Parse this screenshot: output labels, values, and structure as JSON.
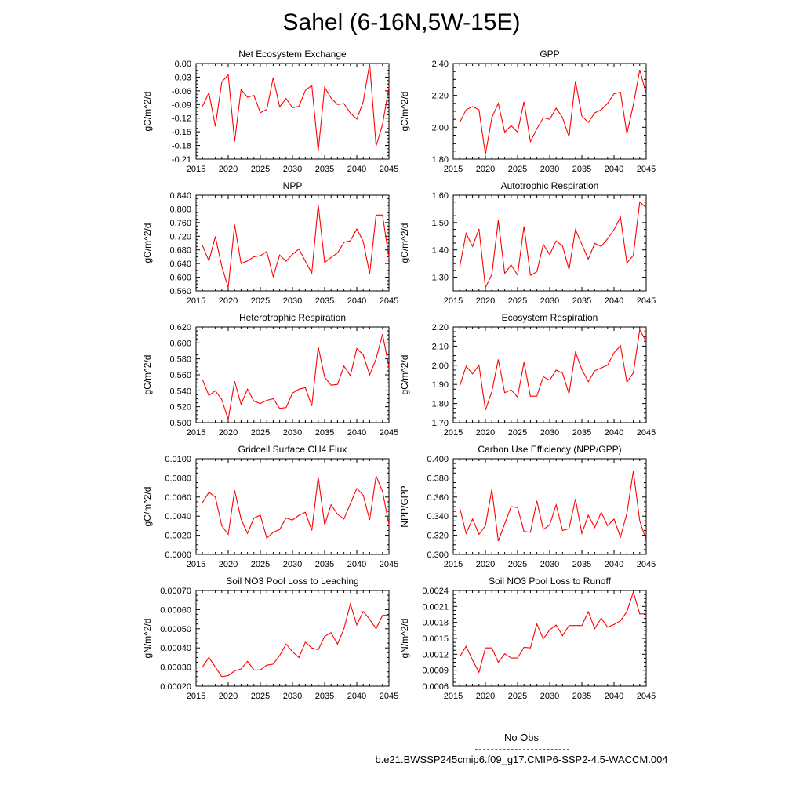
{
  "title": "Sahel (6-16N,5W-15E)",
  "legend": {
    "obs_label": "No Obs",
    "model_label": "b.e21.BWSSP245cmip6.f09_g17.CMIP6-SSP2-4.5-WACCM.004",
    "obs_color": "#5555cc",
    "model_color": "#ff0000"
  },
  "chart_data": [
    {
      "type": "line",
      "title": "Net Ecosystem Exchange",
      "xlabel": "",
      "ylabel": "gC/m^2/d",
      "xlim": [
        2015,
        2045
      ],
      "ylim": [
        -0.21,
        0.0
      ],
      "xticks": [
        "2015",
        "2020",
        "2025",
        "2030",
        "2035",
        "2040",
        "2045"
      ],
      "yticks": [
        "0.00",
        "-0.03",
        "-0.06",
        "-0.09",
        "-0.12",
        "-0.15",
        "-0.18",
        "-0.21"
      ],
      "grid": false,
      "x": [
        2016,
        2017,
        2018,
        2019,
        2020,
        2021,
        2022,
        2023,
        2024,
        2025,
        2026,
        2027,
        2028,
        2029,
        2030,
        2031,
        2032,
        2033,
        2034,
        2035,
        2036,
        2037,
        2038,
        2039,
        2040,
        2041,
        2042,
        2043,
        2044,
        2045
      ],
      "series": [
        {
          "values": [
            -0.094,
            -0.064,
            -0.138,
            -0.041,
            -0.025,
            -0.171,
            -0.057,
            -0.074,
            -0.07,
            -0.108,
            -0.101,
            -0.031,
            -0.095,
            -0.077,
            -0.097,
            -0.094,
            -0.059,
            -0.048,
            -0.192,
            -0.052,
            -0.076,
            -0.09,
            -0.088,
            -0.109,
            -0.122,
            -0.084,
            0.0,
            -0.181,
            -0.134,
            -0.052
          ]
        }
      ]
    },
    {
      "type": "line",
      "title": "GPP",
      "xlabel": "",
      "ylabel": "gC/m^2/d",
      "xlim": [
        2015,
        2045
      ],
      "ylim": [
        1.8,
        2.4
      ],
      "xticks": [
        "2015",
        "2020",
        "2025",
        "2030",
        "2035",
        "2040",
        "2045"
      ],
      "yticks": [
        "2.40",
        "2.20",
        "2.00",
        "1.80"
      ],
      "grid": false,
      "x": [
        2016,
        2017,
        2018,
        2019,
        2020,
        2021,
        2022,
        2023,
        2024,
        2025,
        2026,
        2027,
        2028,
        2029,
        2030,
        2031,
        2032,
        2033,
        2034,
        2035,
        2036,
        2037,
        2038,
        2039,
        2040,
        2041,
        2042,
        2043,
        2044,
        2045
      ],
      "series": [
        {
          "values": [
            2.03,
            2.11,
            2.13,
            2.11,
            1.83,
            2.06,
            2.15,
            1.97,
            2.01,
            1.97,
            2.16,
            1.91,
            1.99,
            2.06,
            2.05,
            2.12,
            2.06,
            1.94,
            2.29,
            2.07,
            2.03,
            2.09,
            2.11,
            2.15,
            2.21,
            2.22,
            1.96,
            2.14,
            2.36,
            2.21
          ]
        }
      ]
    },
    {
      "type": "line",
      "title": "NPP",
      "xlabel": "",
      "ylabel": "gC/m^2/d",
      "xlim": [
        2015,
        2045
      ],
      "ylim": [
        0.56,
        0.84
      ],
      "xticks": [
        "2015",
        "2020",
        "2025",
        "2030",
        "2035",
        "2040",
        "2045"
      ],
      "yticks": [
        "0.840",
        "0.800",
        "0.760",
        "0.720",
        "0.680",
        "0.640",
        "0.600",
        "0.560"
      ],
      "grid": false,
      "x": [
        2016,
        2017,
        2018,
        2019,
        2020,
        2021,
        2022,
        2023,
        2024,
        2025,
        2026,
        2027,
        2028,
        2029,
        2030,
        2031,
        2032,
        2033,
        2034,
        2035,
        2036,
        2037,
        2038,
        2039,
        2040,
        2041,
        2042,
        2043,
        2044,
        2045
      ],
      "series": [
        {
          "values": [
            0.693,
            0.648,
            0.719,
            0.632,
            0.57,
            0.754,
            0.64,
            0.648,
            0.66,
            0.663,
            0.675,
            0.602,
            0.665,
            0.647,
            0.667,
            0.683,
            0.647,
            0.612,
            0.813,
            0.643,
            0.658,
            0.671,
            0.702,
            0.707,
            0.741,
            0.705,
            0.61,
            0.782,
            0.782,
            0.658
          ]
        }
      ]
    },
    {
      "type": "line",
      "title": "Autotrophic Respiration",
      "xlabel": "",
      "ylabel": "gC/m^2/d",
      "xlim": [
        2015,
        2045
      ],
      "ylim": [
        1.25,
        1.6
      ],
      "xticks": [
        "2015",
        "2020",
        "2025",
        "2030",
        "2035",
        "2040",
        "2045"
      ],
      "yticks": [
        "1.60",
        "1.50",
        "1.40",
        "1.30"
      ],
      "grid": false,
      "x": [
        2016,
        2017,
        2018,
        2019,
        2020,
        2021,
        2022,
        2023,
        2024,
        2025,
        2026,
        2027,
        2028,
        2029,
        2030,
        2031,
        2032,
        2033,
        2034,
        2035,
        2036,
        2037,
        2038,
        2039,
        2040,
        2041,
        2042,
        2043,
        2044,
        2045
      ],
      "series": [
        {
          "values": [
            1.337,
            1.461,
            1.413,
            1.477,
            1.262,
            1.31,
            1.508,
            1.314,
            1.345,
            1.308,
            1.486,
            1.307,
            1.32,
            1.42,
            1.383,
            1.433,
            1.414,
            1.328,
            1.474,
            1.42,
            1.366,
            1.424,
            1.413,
            1.441,
            1.474,
            1.52,
            1.352,
            1.38,
            1.575,
            1.555
          ]
        }
      ]
    },
    {
      "type": "line",
      "title": "Heterotrophic Respiration",
      "xlabel": "",
      "ylabel": "gC/m^2/d",
      "xlim": [
        2015,
        2045
      ],
      "ylim": [
        0.5,
        0.62
      ],
      "xticks": [
        "2015",
        "2020",
        "2025",
        "2030",
        "2035",
        "2040",
        "2045"
      ],
      "yticks": [
        "0.620",
        "0.600",
        "0.580",
        "0.560",
        "0.540",
        "0.520",
        "0.500"
      ],
      "grid": false,
      "x": [
        2016,
        2017,
        2018,
        2019,
        2020,
        2021,
        2022,
        2023,
        2024,
        2025,
        2026,
        2027,
        2028,
        2029,
        2030,
        2031,
        2032,
        2033,
        2034,
        2035,
        2036,
        2037,
        2038,
        2039,
        2040,
        2041,
        2042,
        2043,
        2044,
        2045
      ],
      "series": [
        {
          "values": [
            0.554,
            0.534,
            0.54,
            0.529,
            0.504,
            0.552,
            0.523,
            0.542,
            0.527,
            0.524,
            0.528,
            0.53,
            0.518,
            0.519,
            0.537,
            0.542,
            0.544,
            0.521,
            0.595,
            0.557,
            0.547,
            0.548,
            0.571,
            0.559,
            0.593,
            0.585,
            0.56,
            0.58,
            0.611,
            0.57
          ]
        }
      ]
    },
    {
      "type": "line",
      "title": "Ecosystem Respiration",
      "xlabel": "",
      "ylabel": "gC/m^2/d",
      "xlim": [
        2015,
        2045
      ],
      "ylim": [
        1.7,
        2.2
      ],
      "xticks": [
        "2015",
        "2020",
        "2025",
        "2030",
        "2035",
        "2040",
        "2045"
      ],
      "yticks": [
        "2.20",
        "2.10",
        "2.00",
        "1.90",
        "1.80",
        "1.70"
      ],
      "grid": false,
      "x": [
        2016,
        2017,
        2018,
        2019,
        2020,
        2021,
        2022,
        2023,
        2024,
        2025,
        2026,
        2027,
        2028,
        2029,
        2030,
        2031,
        2032,
        2033,
        2034,
        2035,
        2036,
        2037,
        2038,
        2039,
        2040,
        2041,
        2042,
        2043,
        2044,
        2045
      ],
      "series": [
        {
          "values": [
            1.891,
            1.995,
            1.955,
            2.0,
            1.766,
            1.862,
            2.03,
            1.857,
            1.871,
            1.834,
            2.015,
            1.838,
            1.839,
            1.94,
            1.922,
            1.975,
            1.958,
            1.851,
            2.068,
            1.978,
            1.914,
            1.971,
            1.986,
            2.001,
            2.065,
            2.103,
            1.912,
            1.96,
            2.185,
            2.125
          ]
        }
      ]
    },
    {
      "type": "line",
      "title": "Gridcell Surface CH4 Flux",
      "xlabel": "",
      "ylabel": "gC/m^2/d",
      "xlim": [
        2015,
        2045
      ],
      "ylim": [
        0.0,
        0.01
      ],
      "xticks": [
        "2015",
        "2020",
        "2025",
        "2030",
        "2035",
        "2040",
        "2045"
      ],
      "yticks": [
        "0.0100",
        "0.0080",
        "0.0060",
        "0.0040",
        "0.0020",
        "0.0000"
      ],
      "grid": false,
      "x": [
        2016,
        2017,
        2018,
        2019,
        2020,
        2021,
        2022,
        2023,
        2024,
        2025,
        2026,
        2027,
        2028,
        2029,
        2030,
        2031,
        2032,
        2033,
        2034,
        2035,
        2036,
        2037,
        2038,
        2039,
        2040,
        2041,
        2042,
        2043,
        2044,
        2045
      ],
      "series": [
        {
          "values": [
            0.0054,
            0.0065,
            0.006,
            0.003,
            0.0021,
            0.0067,
            0.0037,
            0.0022,
            0.0038,
            0.0041,
            0.0017,
            0.0023,
            0.0026,
            0.0038,
            0.0036,
            0.0041,
            0.0044,
            0.0025,
            0.0081,
            0.0031,
            0.0052,
            0.0042,
            0.0037,
            0.0053,
            0.0069,
            0.0062,
            0.0036,
            0.0082,
            0.0066,
            0.0031
          ]
        }
      ]
    },
    {
      "type": "line",
      "title": "Carbon Use Efficiency (NPP/GPP)",
      "xlabel": "",
      "ylabel": "NPP/GPP",
      "xlim": [
        2015,
        2045
      ],
      "ylim": [
        0.3,
        0.4
      ],
      "xticks": [
        "2015",
        "2020",
        "2025",
        "2030",
        "2035",
        "2040",
        "2045"
      ],
      "yticks": [
        "0.400",
        "0.380",
        "0.360",
        "0.340",
        "0.320",
        "0.300"
      ],
      "grid": false,
      "x": [
        2016,
        2017,
        2018,
        2019,
        2020,
        2021,
        2022,
        2023,
        2024,
        2025,
        2026,
        2027,
        2028,
        2029,
        2030,
        2031,
        2032,
        2033,
        2034,
        2035,
        2036,
        2037,
        2038,
        2039,
        2040,
        2041,
        2042,
        2043,
        2044,
        2045
      ],
      "series": [
        {
          "values": [
            0.349,
            0.322,
            0.337,
            0.321,
            0.33,
            0.368,
            0.314,
            0.332,
            0.35,
            0.349,
            0.324,
            0.323,
            0.356,
            0.326,
            0.331,
            0.352,
            0.325,
            0.327,
            0.358,
            0.322,
            0.341,
            0.328,
            0.344,
            0.33,
            0.337,
            0.318,
            0.343,
            0.387,
            0.335,
            0.315
          ]
        }
      ]
    },
    {
      "type": "line",
      "title": "Soil NO3 Pool Loss to Leaching",
      "xlabel": "",
      "ylabel": "gN/m^2/d",
      "xlim": [
        2015,
        2045
      ],
      "ylim": [
        0.0002,
        0.0007
      ],
      "xticks": [
        "2015",
        "2020",
        "2025",
        "2030",
        "2035",
        "2040",
        "2045"
      ],
      "yticks": [
        "0.00070",
        "0.00060",
        "0.00050",
        "0.00040",
        "0.00030",
        "0.00020"
      ],
      "grid": false,
      "x": [
        2016,
        2017,
        2018,
        2019,
        2020,
        2021,
        2022,
        2023,
        2024,
        2025,
        2026,
        2027,
        2028,
        2029,
        2030,
        2031,
        2032,
        2033,
        2034,
        2035,
        2036,
        2037,
        2038,
        2039,
        2040,
        2041,
        2042,
        2043,
        2044,
        2045
      ],
      "series": [
        {
          "values": [
            0.0003,
            0.00035,
            0.0003,
            0.00025,
            0.000255,
            0.00028,
            0.00029,
            0.00033,
            0.000285,
            0.000285,
            0.00031,
            0.000315,
            0.00036,
            0.00042,
            0.00038,
            0.00035,
            0.00043,
            0.0004,
            0.00039,
            0.00046,
            0.00048,
            0.00042,
            0.0005,
            0.00063,
            0.00052,
            0.00059,
            0.00055,
            0.0005,
            0.00057,
            0.00057
          ]
        }
      ]
    },
    {
      "type": "line",
      "title": "Soil NO3 Pool Loss to Runoff",
      "xlabel": "",
      "ylabel": "gN/m^2/d",
      "xlim": [
        2015,
        2045
      ],
      "ylim": [
        0.0006,
        0.0024
      ],
      "xticks": [
        "2015",
        "2020",
        "2025",
        "2030",
        "2035",
        "2040",
        "2045"
      ],
      "yticks": [
        "0.0024",
        "0.0021",
        "0.0018",
        "0.0015",
        "0.0012",
        "0.0009",
        "0.0006"
      ],
      "grid": false,
      "x": [
        2016,
        2017,
        2018,
        2019,
        2020,
        2021,
        2022,
        2023,
        2024,
        2025,
        2026,
        2027,
        2028,
        2029,
        2030,
        2031,
        2032,
        2033,
        2034,
        2035,
        2036,
        2037,
        2038,
        2039,
        2040,
        2041,
        2042,
        2043,
        2044,
        2045
      ],
      "series": [
        {
          "values": [
            0.00115,
            0.00135,
            0.00109,
            0.00086,
            0.00132,
            0.00132,
            0.00105,
            0.00121,
            0.00113,
            0.00113,
            0.00133,
            0.00132,
            0.00177,
            0.00149,
            0.00166,
            0.00175,
            0.00155,
            0.00174,
            0.00174,
            0.00174,
            0.002,
            0.00168,
            0.00188,
            0.00171,
            0.00176,
            0.00183,
            0.002,
            0.00237,
            0.00196,
            0.00196
          ]
        }
      ]
    }
  ]
}
